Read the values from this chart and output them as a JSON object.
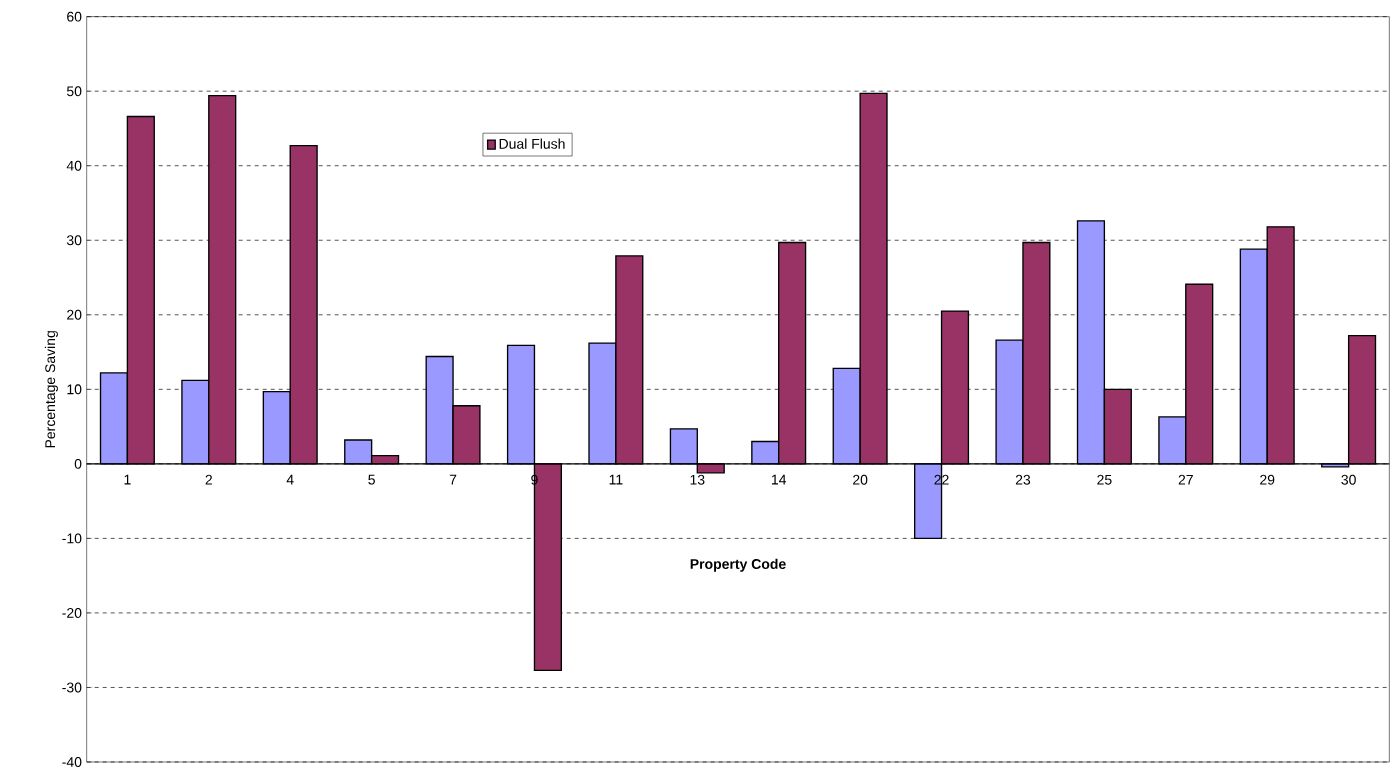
{
  "chart_data": {
    "type": "bar",
    "xlabel": "Property Code",
    "ylabel": "Percentage Saving",
    "categories": [
      "1",
      "2",
      "4",
      "5",
      "7",
      "9",
      "11",
      "13",
      "14",
      "20",
      "22",
      "23",
      "25",
      "27",
      "29",
      "30"
    ],
    "series": [
      {
        "color": "#9999ff",
        "values": [
          12.2,
          11.2,
          9.7,
          3.2,
          14.4,
          15.9,
          16.2,
          4.7,
          3.0,
          12.8,
          -10.0,
          16.6,
          32.6,
          6.3,
          28.8,
          -0.4
        ]
      },
      {
        "name": "Dual Flush",
        "color": "#993366",
        "values": [
          46.6,
          49.4,
          42.7,
          1.1,
          7.8,
          -27.7,
          27.9,
          -1.2,
          29.7,
          49.7,
          20.5,
          29.7,
          10.0,
          24.1,
          31.8,
          17.2
        ]
      }
    ],
    "ylim": [
      -40,
      60
    ],
    "yticks": [
      -40,
      -30,
      -20,
      -10,
      0,
      10,
      20,
      30,
      40,
      50,
      60
    ],
    "grid": "y",
    "legend": "top"
  }
}
